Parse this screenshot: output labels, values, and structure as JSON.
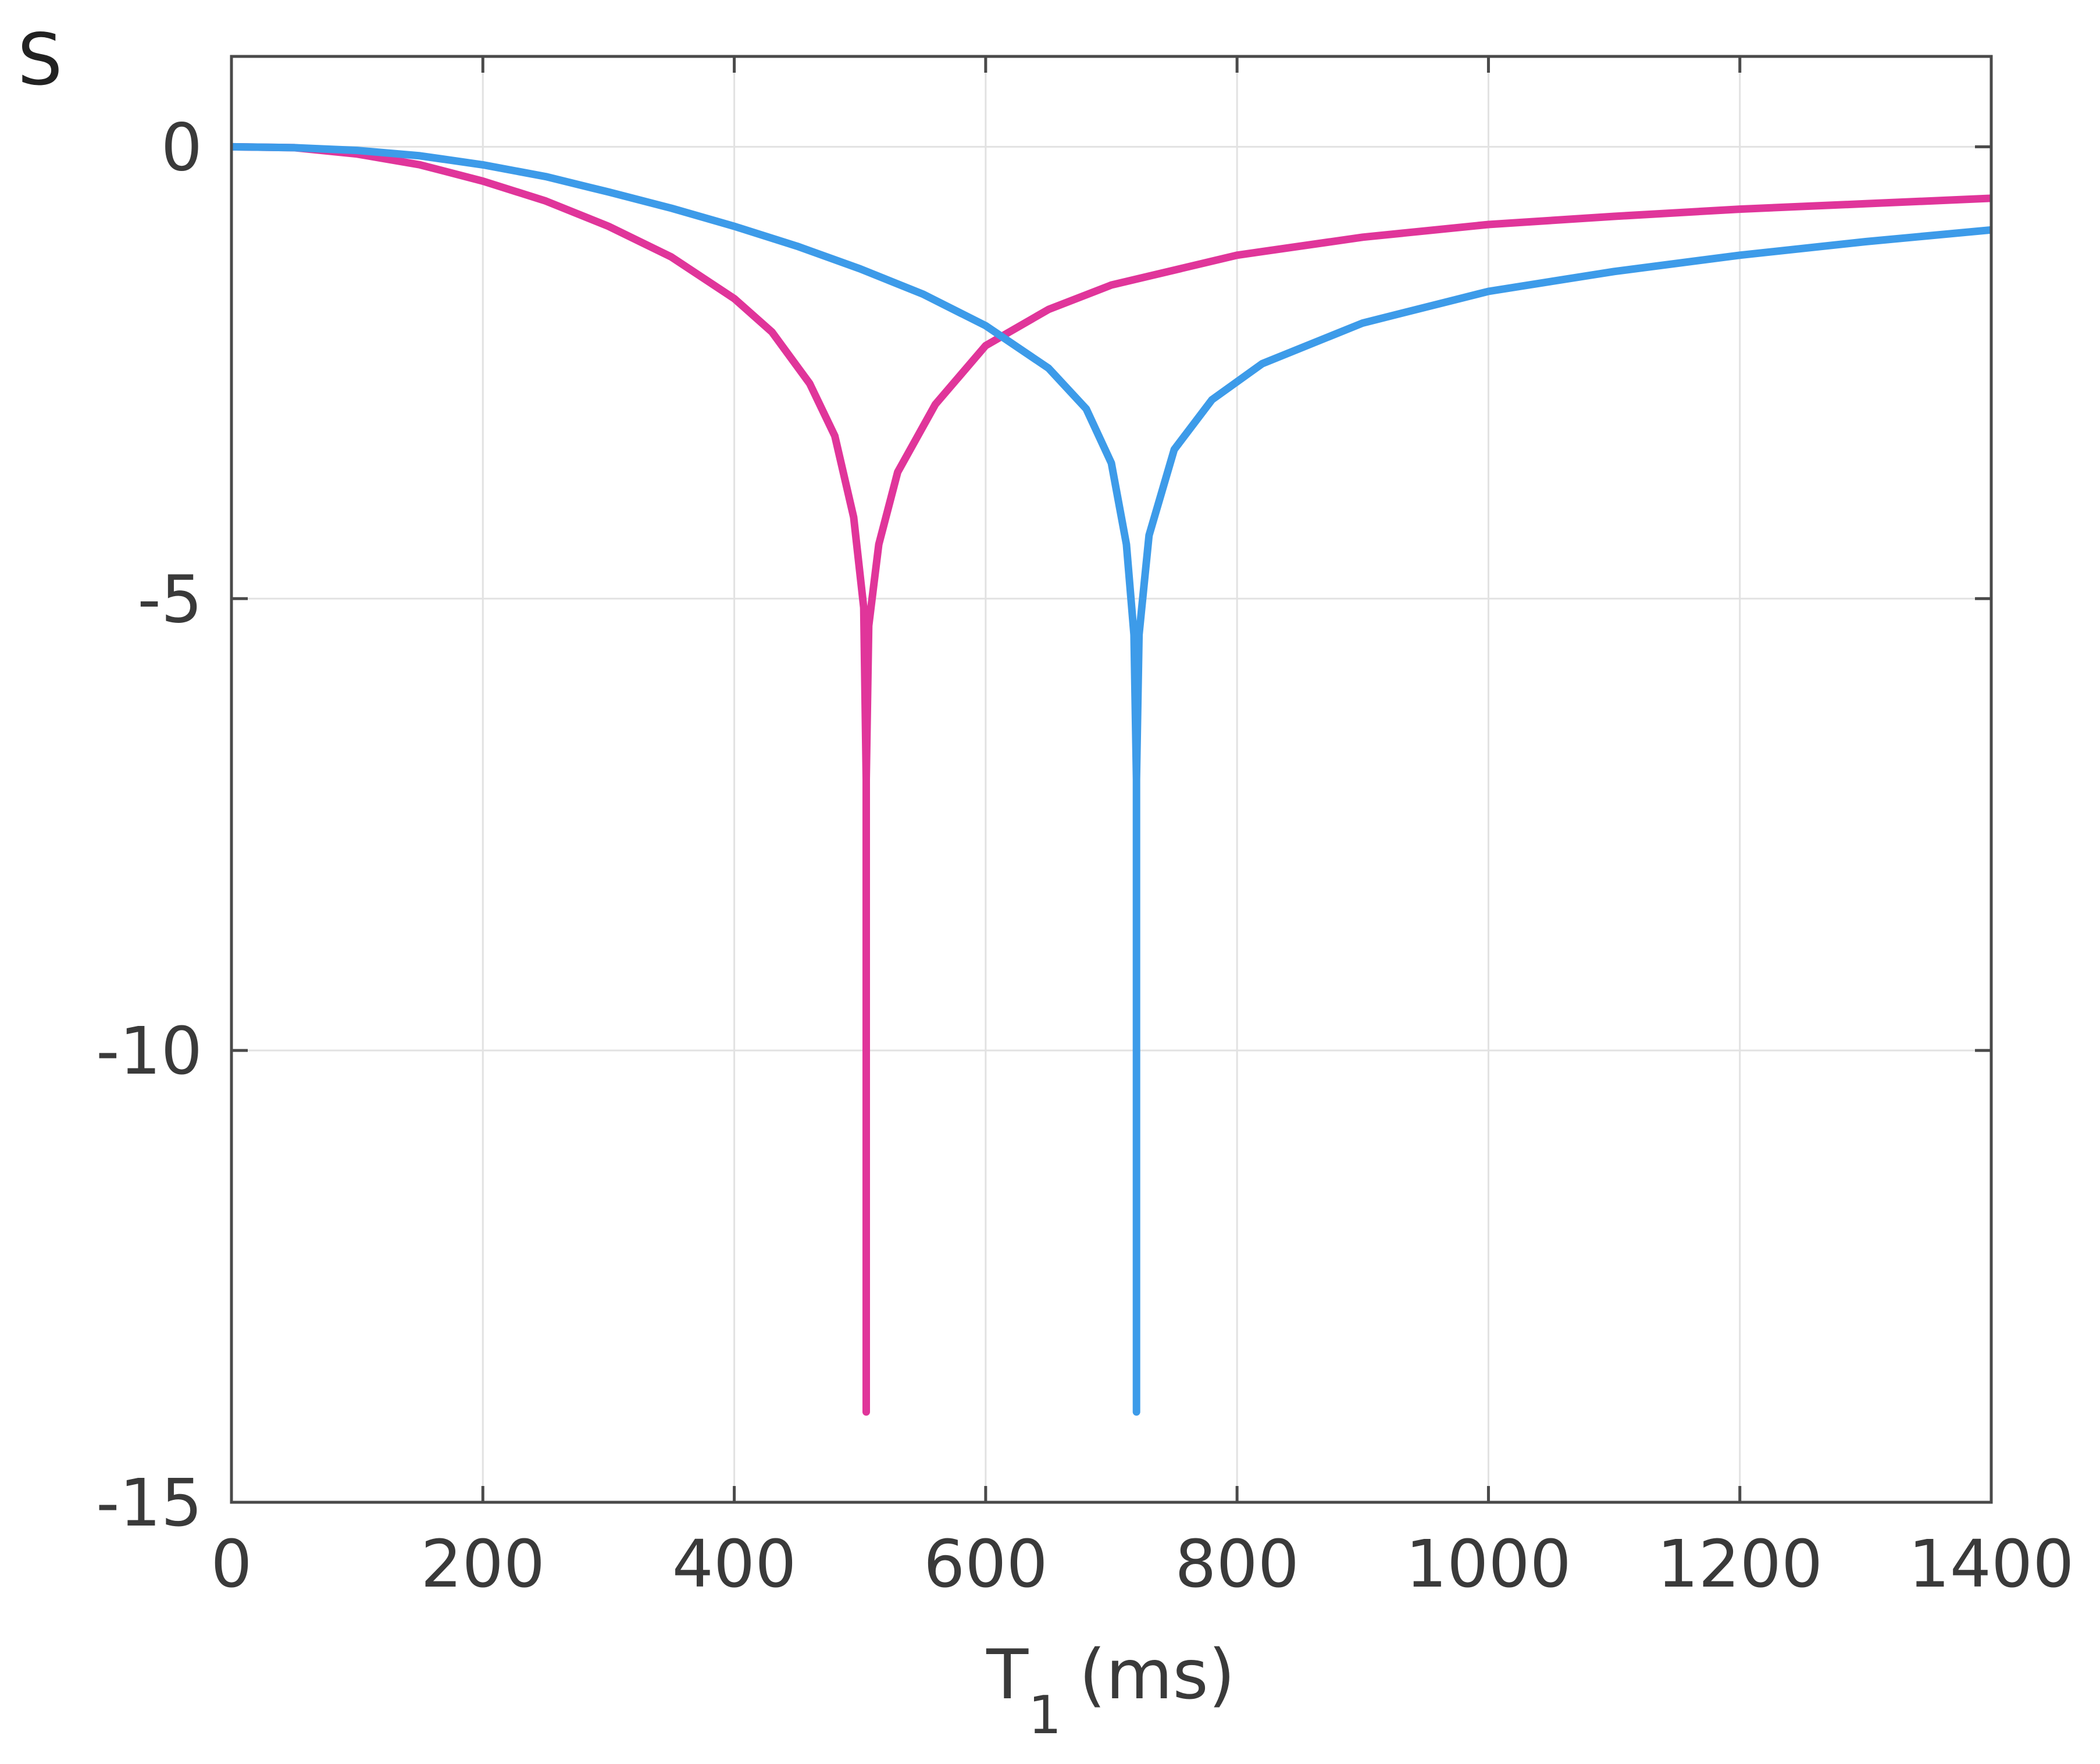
{
  "panel_label": "S",
  "chart_data": {
    "type": "line",
    "xlabel": "T",
    "xlabel_subscript": "1",
    "xlabel_unit": "(ms)",
    "ylabel": "",
    "xlim": [
      0,
      1400
    ],
    "ylim": [
      -15,
      1
    ],
    "xticks": [
      0,
      200,
      400,
      600,
      800,
      1000,
      1200,
      1400
    ],
    "xtick_labels": [
      "0",
      "200",
      "400",
      "600",
      "800",
      "1000",
      "1200",
      "1400"
    ],
    "yticks": [
      0,
      -5,
      -10,
      -15
    ],
    "ytick_labels": [
      "0",
      "-5",
      "-10",
      "-15"
    ],
    "grid": true,
    "legend": "none",
    "series": [
      {
        "color": "#e0359a",
        "points": [
          [
            0,
            0.0
          ],
          [
            50,
            -0.01
          ],
          [
            100,
            -0.08
          ],
          [
            150,
            -0.2
          ],
          [
            200,
            -0.38
          ],
          [
            250,
            -0.6
          ],
          [
            300,
            -0.88
          ],
          [
            350,
            -1.22
          ],
          [
            400,
            -1.68
          ],
          [
            430,
            -2.05
          ],
          [
            460,
            -2.62
          ],
          [
            480,
            -3.2
          ],
          [
            495,
            -4.1
          ],
          [
            503,
            -5.1
          ],
          [
            505,
            -7.0
          ],
          [
            505,
            -14.0
          ],
          [
            505,
            -7.0
          ],
          [
            507,
            -5.3
          ],
          [
            515,
            -4.4
          ],
          [
            530,
            -3.6
          ],
          [
            560,
            -2.85
          ],
          [
            600,
            -2.2
          ],
          [
            650,
            -1.8
          ],
          [
            700,
            -1.53
          ],
          [
            800,
            -1.2
          ],
          [
            900,
            -1.0
          ],
          [
            1000,
            -0.86
          ],
          [
            1100,
            -0.77
          ],
          [
            1200,
            -0.69
          ],
          [
            1300,
            -0.63
          ],
          [
            1400,
            -0.57
          ]
        ]
      },
      {
        "color": "#3d9be9",
        "points": [
          [
            0,
            0.0
          ],
          [
            50,
            -0.01
          ],
          [
            100,
            -0.04
          ],
          [
            150,
            -0.1
          ],
          [
            200,
            -0.2
          ],
          [
            250,
            -0.33
          ],
          [
            300,
            -0.5
          ],
          [
            350,
            -0.68
          ],
          [
            400,
            -0.88
          ],
          [
            450,
            -1.1
          ],
          [
            500,
            -1.35
          ],
          [
            550,
            -1.63
          ],
          [
            600,
            -1.98
          ],
          [
            650,
            -2.45
          ],
          [
            680,
            -2.9
          ],
          [
            700,
            -3.5
          ],
          [
            712,
            -4.4
          ],
          [
            718,
            -5.4
          ],
          [
            720,
            -7.0
          ],
          [
            720,
            -14.0
          ],
          [
            720,
            -7.0
          ],
          [
            722,
            -5.4
          ],
          [
            730,
            -4.3
          ],
          [
            750,
            -3.35
          ],
          [
            780,
            -2.8
          ],
          [
            820,
            -2.4
          ],
          [
            900,
            -1.95
          ],
          [
            1000,
            -1.6
          ],
          [
            1100,
            -1.38
          ],
          [
            1200,
            -1.2
          ],
          [
            1300,
            -1.05
          ],
          [
            1400,
            -0.92
          ]
        ]
      }
    ]
  }
}
